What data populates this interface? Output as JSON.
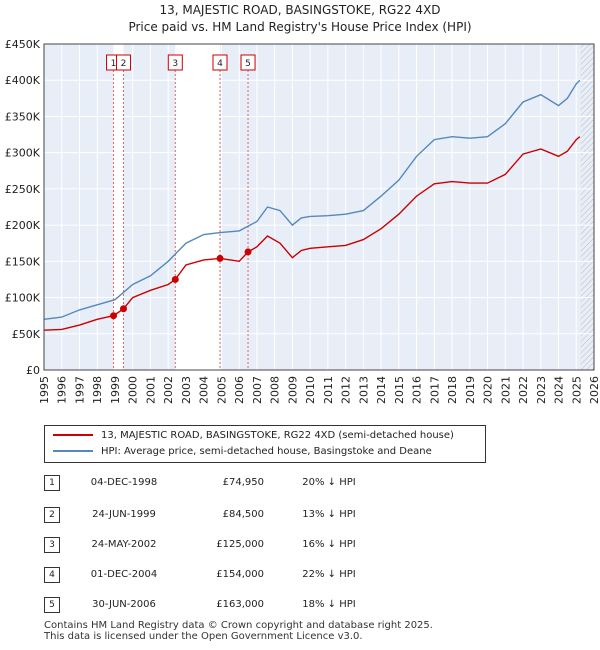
{
  "chart_data": {
    "type": "line",
    "title": "13, MAJESTIC ROAD, BASINGSTOKE, RG22 4XD",
    "subtitle": "Price paid vs. HM Land Registry's House Price Index (HPI)",
    "xlim": [
      1995,
      2026
    ],
    "ylim": [
      0,
      450000
    ],
    "x_ticks": [
      1995,
      1996,
      1997,
      1998,
      1999,
      2000,
      2001,
      2002,
      2003,
      2004,
      2005,
      2006,
      2007,
      2008,
      2009,
      2010,
      2011,
      2012,
      2013,
      2014,
      2015,
      2016,
      2017,
      2018,
      2019,
      2020,
      2021,
      2022,
      2023,
      2024,
      2025,
      2026
    ],
    "y_ticks": [
      {
        "value": 0,
        "label": "£0"
      },
      {
        "value": 50000,
        "label": "£50K"
      },
      {
        "value": 100000,
        "label": "£100K"
      },
      {
        "value": 150000,
        "label": "£150K"
      },
      {
        "value": 200000,
        "label": "£200K"
      },
      {
        "value": 250000,
        "label": "£250K"
      },
      {
        "value": 300000,
        "label": "£300K"
      },
      {
        "value": 350000,
        "label": "£350K"
      },
      {
        "value": 400000,
        "label": "£400K"
      },
      {
        "value": 450000,
        "label": "£450K"
      }
    ],
    "series": [
      {
        "name": "13, MAJESTIC ROAD, BASINGSTOKE, RG22 4XD (semi-detached house)",
        "color": "#cc0000",
        "points": [
          [
            1995,
            55000
          ],
          [
            1996,
            56000
          ],
          [
            1997,
            62000
          ],
          [
            1998,
            70000
          ],
          [
            1998.92,
            74950
          ],
          [
            1999.48,
            84500
          ],
          [
            2000,
            100000
          ],
          [
            2001,
            110000
          ],
          [
            2002,
            118000
          ],
          [
            2002.4,
            125000
          ],
          [
            2003,
            145000
          ],
          [
            2004,
            152000
          ],
          [
            2004.92,
            154000
          ],
          [
            2005.5,
            152000
          ],
          [
            2006,
            150000
          ],
          [
            2006.5,
            163000
          ],
          [
            2007,
            170000
          ],
          [
            2007.6,
            185000
          ],
          [
            2008.3,
            175000
          ],
          [
            2009,
            155000
          ],
          [
            2009.5,
            165000
          ],
          [
            2010,
            168000
          ],
          [
            2011,
            170000
          ],
          [
            2012,
            172000
          ],
          [
            2013,
            180000
          ],
          [
            2014,
            195000
          ],
          [
            2015,
            215000
          ],
          [
            2016,
            240000
          ],
          [
            2017,
            257000
          ],
          [
            2018,
            260000
          ],
          [
            2019,
            258000
          ],
          [
            2020,
            258000
          ],
          [
            2021,
            270000
          ],
          [
            2022,
            298000
          ],
          [
            2023,
            305000
          ],
          [
            2024,
            295000
          ],
          [
            2024.5,
            302000
          ],
          [
            2025,
            318000
          ],
          [
            2025.2,
            322000
          ]
        ]
      },
      {
        "name": "HPI: Average price, semi-detached house, Basingstoke and Deane",
        "color": "#5588bb",
        "points": [
          [
            1995,
            70000
          ],
          [
            1996,
            73000
          ],
          [
            1997,
            83000
          ],
          [
            1998,
            90000
          ],
          [
            1999,
            97000
          ],
          [
            2000,
            118000
          ],
          [
            2001,
            130000
          ],
          [
            2002,
            150000
          ],
          [
            2003,
            175000
          ],
          [
            2004,
            187000
          ],
          [
            2005,
            190000
          ],
          [
            2006,
            192000
          ],
          [
            2007,
            205000
          ],
          [
            2007.6,
            225000
          ],
          [
            2008.3,
            220000
          ],
          [
            2009,
            200000
          ],
          [
            2009.5,
            210000
          ],
          [
            2010,
            212000
          ],
          [
            2011,
            213000
          ],
          [
            2012,
            215000
          ],
          [
            2013,
            220000
          ],
          [
            2014,
            240000
          ],
          [
            2015,
            262000
          ],
          [
            2016,
            295000
          ],
          [
            2017,
            318000
          ],
          [
            2018,
            322000
          ],
          [
            2019,
            320000
          ],
          [
            2020,
            322000
          ],
          [
            2021,
            340000
          ],
          [
            2022,
            370000
          ],
          [
            2023,
            380000
          ],
          [
            2024,
            365000
          ],
          [
            2024.5,
            375000
          ],
          [
            2025,
            395000
          ],
          [
            2025.2,
            400000
          ]
        ]
      }
    ],
    "sales": [
      {
        "num": "1",
        "x": 1998.92,
        "y": 74950
      },
      {
        "num": "2",
        "x": 1999.48,
        "y": 84500
      },
      {
        "num": "3",
        "x": 2002.4,
        "y": 125000
      },
      {
        "num": "4",
        "x": 2004.92,
        "y": 154000
      },
      {
        "num": "5",
        "x": 2006.5,
        "y": 163000
      }
    ],
    "shaded_periods": [
      [
        1998.92,
        1999.48
      ],
      [
        2002.4,
        2004.92
      ],
      [
        2006.5,
        2006.5
      ]
    ],
    "forecast_from": 2025.25
  },
  "legend": {
    "property_label": "13, MAJESTIC ROAD, BASINGSTOKE, RG22 4XD (semi-detached house)",
    "hpi_label": "HPI: Average price, semi-detached house, Basingstoke and Deane",
    "property_color": "#cc0000",
    "hpi_color": "#5588bb"
  },
  "transactions": [
    {
      "num": "1",
      "date": "04-DEC-1998",
      "price": "£74,950",
      "hpi": "20% ↓ HPI"
    },
    {
      "num": "2",
      "date": "24-JUN-1999",
      "price": "£84,500",
      "hpi": "13% ↓ HPI"
    },
    {
      "num": "3",
      "date": "24-MAY-2002",
      "price": "£125,000",
      "hpi": "16% ↓ HPI"
    },
    {
      "num": "4",
      "date": "01-DEC-2004",
      "price": "£154,000",
      "hpi": "22% ↓ HPI"
    },
    {
      "num": "5",
      "date": "30-JUN-2006",
      "price": "£163,000",
      "hpi": "18% ↓ HPI"
    }
  ],
  "footer": {
    "line1": "Contains HM Land Registry data © Crown copyright and database right 2025.",
    "line2": "This data is licensed under the Open Government Licence v3.0."
  }
}
